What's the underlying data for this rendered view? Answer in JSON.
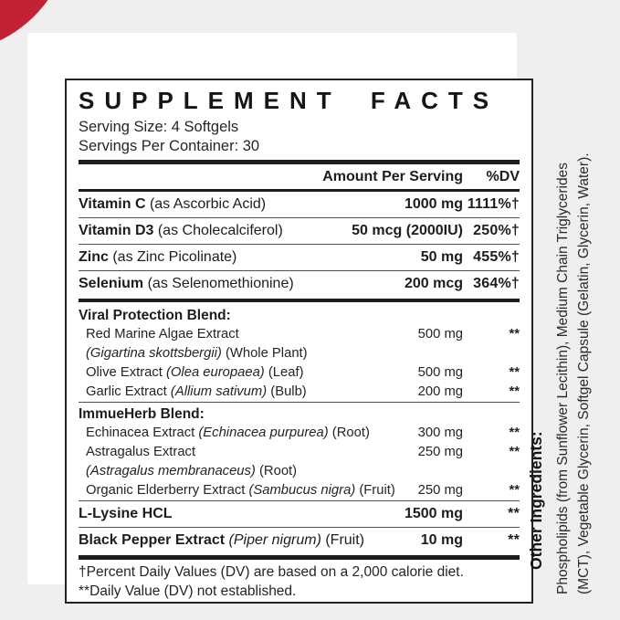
{
  "colors": {
    "background": "#efeff0",
    "card": "#ffffff",
    "accent_red": "#c32134",
    "ink": "#1d1d1d"
  },
  "panel": {
    "title": "SUPPLEMENT FACTS",
    "serving_size": "Serving Size: 4 Softgels",
    "servings_per_container": "Servings Per Container: 30",
    "columns": {
      "amount": "Amount Per Serving",
      "dv": "%DV"
    },
    "rows": [
      {
        "type": "nutrient",
        "segments": [
          {
            "t": "Vitamin C",
            "b": 1
          },
          {
            "t": " (as Ascorbic Acid)"
          }
        ],
        "amount": "1000 mg",
        "dv": "1111%†",
        "divider": "thin"
      },
      {
        "type": "nutrient",
        "segments": [
          {
            "t": "Vitamin D3",
            "b": 1
          },
          {
            "t": " (as Cholecalciferol)"
          }
        ],
        "amount": "50 mcg (2000IU)",
        "dv": "250%†",
        "divider": "thin"
      },
      {
        "type": "nutrient",
        "segments": [
          {
            "t": "Zinc",
            "b": 1
          },
          {
            "t": " (as Zinc Picolinate)"
          }
        ],
        "amount": "50 mg",
        "dv": "455%†",
        "divider": "thin"
      },
      {
        "type": "nutrient",
        "segments": [
          {
            "t": "Selenium",
            "b": 1
          },
          {
            "t": " (as Selenomethionine)"
          }
        ],
        "amount": "200 mcg",
        "dv": "364%†",
        "divider": "thick"
      },
      {
        "type": "heading",
        "segments": [
          {
            "t": "Viral Protection Blend:",
            "b": 1
          }
        ]
      },
      {
        "type": "item",
        "segments": [
          {
            "t": "Red Marine Algae Extract"
          }
        ],
        "amount": "500 mg",
        "dv": "**"
      },
      {
        "type": "subline",
        "segments": [
          {
            "t": "(Gigartina skottsbergii)",
            "i": 1
          },
          {
            "t": " (Whole Plant)"
          }
        ]
      },
      {
        "type": "item",
        "segments": [
          {
            "t": "Olive Extract "
          },
          {
            "t": "(Olea europaea)",
            "i": 1
          },
          {
            "t": " (Leaf)"
          }
        ],
        "amount": "500 mg",
        "dv": "**"
      },
      {
        "type": "item",
        "segments": [
          {
            "t": "Garlic Extract "
          },
          {
            "t": "(Allium sativum)",
            "i": 1
          },
          {
            "t": " (Bulb)"
          }
        ],
        "amount": "200 mg",
        "dv": "**",
        "divider": "thin"
      },
      {
        "type": "heading",
        "segments": [
          {
            "t": "ImmueHerb Blend:",
            "b": 1
          }
        ]
      },
      {
        "type": "item",
        "segments": [
          {
            "t": "Echinacea Extract "
          },
          {
            "t": "(Echinacea purpurea)",
            "i": 1
          },
          {
            "t": " (Root)"
          }
        ],
        "amount": "300 mg",
        "dv": "**"
      },
      {
        "type": "item",
        "segments": [
          {
            "t": "Astragalus Extract"
          }
        ],
        "amount": "250 mg",
        "dv": "**"
      },
      {
        "type": "subline",
        "segments": [
          {
            "t": "(Astragalus membranaceus)",
            "i": 1
          },
          {
            "t": " (Root)"
          }
        ]
      },
      {
        "type": "item",
        "segments": [
          {
            "t": "Organic Elderberry Extract "
          },
          {
            "t": "(Sambucus nigra)",
            "i": 1
          },
          {
            "t": " (Fruit)"
          }
        ],
        "amount": "250 mg",
        "dv": "**",
        "divider": "thin"
      },
      {
        "type": "nutrient",
        "segments": [
          {
            "t": "L-Lysine HCL",
            "b": 1
          }
        ],
        "amount": "1500 mg",
        "dv": "**",
        "divider": "thin"
      },
      {
        "type": "nutrient",
        "segments": [
          {
            "t": "Black Pepper Extract ",
            "b": 1
          },
          {
            "t": "(Piper nigrum)",
            "i": 1
          },
          {
            "t": " (Fruit)"
          }
        ],
        "amount": "10 mg",
        "dv": "**",
        "divider": "xthick"
      }
    ],
    "footnotes": [
      "†Percent Daily Values (DV) are based on a 2,000 calorie diet.",
      "**Daily Value (DV) not established."
    ]
  },
  "other_ingredients": {
    "heading": "Other Ingredients:",
    "lines": [
      "Phospholipids (from Sunflower Lecithin), Medium Chain Triglycerides",
      "(MCT), Vegetable Glycerin, Softgel Capsule (Gelatin, Glycerin, Water)."
    ]
  }
}
